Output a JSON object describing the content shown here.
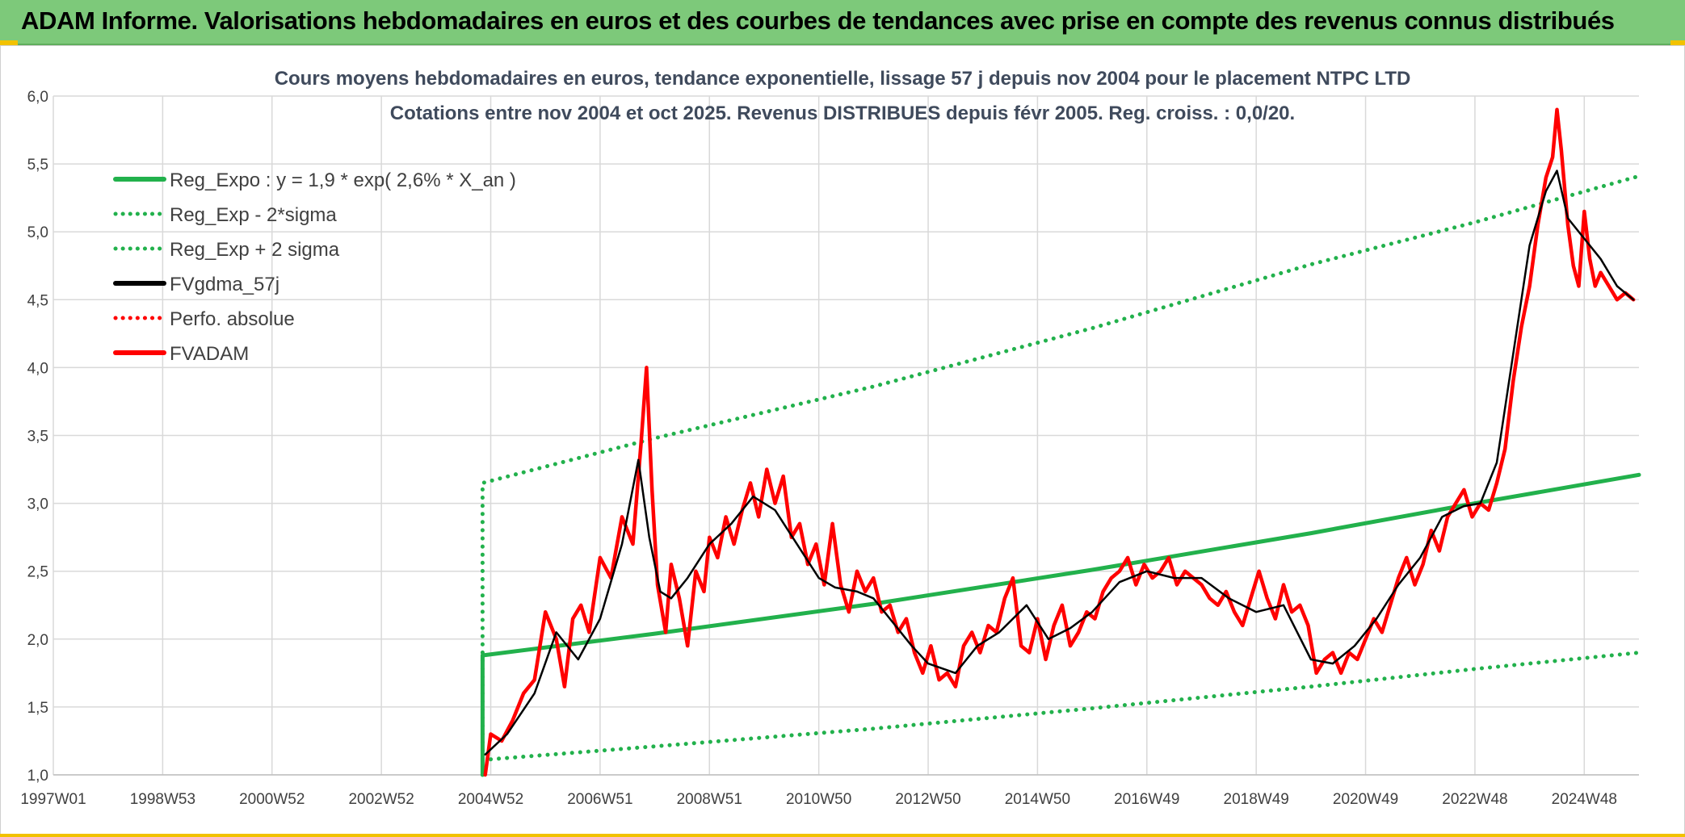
{
  "header": {
    "title": "ADAM Informe. Valorisations hebdomadaires en euros et des courbes de tendances avec prise en compte des revenus connus distribués"
  },
  "chart_data": {
    "type": "line",
    "title": "Cours moyens hebdomadaires en euros, tendance exponentielle, lissage 57 j depuis nov 2004 pour le placement NTPC LTD",
    "subtitle": "Cotations entre nov 2004 et oct 2025. Revenus DISTRIBUES depuis févr 2005. Reg. croiss. : 0,0/20.",
    "xlabel": "",
    "ylabel": "",
    "ylim": [
      1.0,
      6.0
    ],
    "yticks": [
      "1,0",
      "1,5",
      "2,0",
      "2,5",
      "3,0",
      "3,5",
      "4,0",
      "4,5",
      "5,0",
      "5,5",
      "6,0"
    ],
    "x_tick_labels": [
      "1997W01",
      "1998W53",
      "2000W52",
      "2002W52",
      "2004W52",
      "2006W51",
      "2008W51",
      "2010W50",
      "2012W50",
      "2014W50",
      "2016W49",
      "2018W49",
      "2020W49",
      "2022W48",
      "2024W48"
    ],
    "x_tick_years": [
      1997.0,
      1999.0,
      2001.0,
      2003.0,
      2005.0,
      2007.0,
      2009.0,
      2011.0,
      2013.0,
      2015.0,
      2017.0,
      2019.0,
      2021.0,
      2023.0,
      2025.0
    ],
    "xlim": [
      1997.0,
      2026.0
    ],
    "grid": true,
    "legend_position": "top-left",
    "series": [
      {
        "name": "Reg_Expo : y = 1,9 * exp( 2,6% *  X_an )",
        "color": "#22b14c",
        "style": "solid",
        "x": [
          2004.85,
          2004.85,
          2008,
          2012,
          2016,
          2020,
          2023,
          2026
        ],
        "y": [
          1.0,
          1.88,
          2.04,
          2.26,
          2.51,
          2.78,
          3.0,
          3.21
        ]
      },
      {
        "name": "Reg_Exp - 2*sigma",
        "color": "#22b14c",
        "style": "dotted",
        "x": [
          2004.85,
          2008,
          2012,
          2016,
          2020,
          2023,
          2026
        ],
        "y": [
          1.11,
          1.21,
          1.34,
          1.49,
          1.65,
          1.78,
          1.9
        ]
      },
      {
        "name": "Reg_Exp + 2 sigma",
        "color": "#22b14c",
        "style": "dotted",
        "x": [
          2004.85,
          2004.85,
          2008,
          2012,
          2016,
          2020,
          2023,
          2026
        ],
        "y": [
          1.0,
          3.15,
          3.48,
          3.86,
          4.29,
          4.76,
          5.07,
          5.41
        ]
      },
      {
        "name": "FVgdma_57j",
        "color": "#000000",
        "style": "solid",
        "x": [
          2004.9,
          2005.3,
          2005.8,
          2006.2,
          2006.6,
          2007.0,
          2007.4,
          2007.7,
          2007.9,
          2008.1,
          2008.3,
          2008.6,
          2009.0,
          2009.4,
          2009.8,
          2010.2,
          2010.6,
          2011.0,
          2011.3,
          2011.7,
          2012.0,
          2012.3,
          2012.7,
          2013.0,
          2013.5,
          2013.9,
          2014.3,
          2014.8,
          2015.2,
          2015.6,
          2016.0,
          2016.5,
          2017.0,
          2017.5,
          2018.0,
          2018.5,
          2019.0,
          2019.5,
          2020.0,
          2020.4,
          2020.8,
          2021.2,
          2021.6,
          2022.0,
          2022.4,
          2022.8,
          2023.1,
          2023.4,
          2023.7,
          2024.0,
          2024.3,
          2024.5,
          2024.7,
          2025.0,
          2025.3,
          2025.6,
          2025.9
        ],
        "y": [
          1.15,
          1.3,
          1.6,
          2.05,
          1.85,
          2.15,
          2.7,
          3.32,
          2.75,
          2.35,
          2.3,
          2.45,
          2.7,
          2.85,
          3.05,
          2.95,
          2.7,
          2.45,
          2.38,
          2.35,
          2.3,
          2.15,
          1.95,
          1.82,
          1.75,
          1.95,
          2.05,
          2.25,
          2.0,
          2.08,
          2.2,
          2.42,
          2.5,
          2.45,
          2.45,
          2.3,
          2.2,
          2.25,
          1.85,
          1.82,
          1.95,
          2.15,
          2.4,
          2.6,
          2.9,
          2.98,
          3.0,
          3.3,
          4.1,
          4.9,
          5.3,
          5.45,
          5.1,
          4.95,
          4.8,
          4.6,
          4.5
        ]
      },
      {
        "name": "Perfo. absolue",
        "color": "#ff0000",
        "style": "dotted",
        "x": [],
        "y": []
      },
      {
        "name": "FVADAM",
        "color": "#ff0000",
        "style": "solid",
        "x": [
          2004.9,
          2005.0,
          2005.2,
          2005.4,
          2005.6,
          2005.8,
          2006.0,
          2006.2,
          2006.35,
          2006.5,
          2006.65,
          2006.8,
          2007.0,
          2007.2,
          2007.4,
          2007.6,
          2007.75,
          2007.85,
          2007.95,
          2008.05,
          2008.2,
          2008.3,
          2008.45,
          2008.6,
          2008.75,
          2008.9,
          2009.0,
          2009.15,
          2009.3,
          2009.45,
          2009.6,
          2009.75,
          2009.9,
          2010.05,
          2010.2,
          2010.35,
          2010.5,
          2010.65,
          2010.8,
          2010.95,
          2011.1,
          2011.25,
          2011.4,
          2011.55,
          2011.7,
          2011.85,
          2012.0,
          2012.15,
          2012.3,
          2012.45,
          2012.6,
          2012.75,
          2012.9,
          2013.05,
          2013.2,
          2013.35,
          2013.5,
          2013.65,
          2013.8,
          2013.95,
          2014.1,
          2014.25,
          2014.4,
          2014.55,
          2014.7,
          2014.85,
          2015.0,
          2015.15,
          2015.3,
          2015.45,
          2015.6,
          2015.75,
          2015.9,
          2016.05,
          2016.2,
          2016.35,
          2016.5,
          2016.65,
          2016.8,
          2016.95,
          2017.1,
          2017.25,
          2017.4,
          2017.55,
          2017.7,
          2017.85,
          2018.0,
          2018.15,
          2018.3,
          2018.45,
          2018.6,
          2018.75,
          2018.9,
          2019.05,
          2019.2,
          2019.35,
          2019.5,
          2019.65,
          2019.8,
          2019.95,
          2020.1,
          2020.25,
          2020.4,
          2020.55,
          2020.7,
          2020.85,
          2021.0,
          2021.15,
          2021.3,
          2021.45,
          2021.6,
          2021.75,
          2021.9,
          2022.05,
          2022.2,
          2022.35,
          2022.5,
          2022.65,
          2022.8,
          2022.95,
          2023.1,
          2023.25,
          2023.4,
          2023.55,
          2023.7,
          2023.85,
          2024.0,
          2024.15,
          2024.3,
          2024.42,
          2024.5,
          2024.58,
          2024.7,
          2024.8,
          2024.9,
          2025.0,
          2025.1,
          2025.2,
          2025.3,
          2025.45,
          2025.6,
          2025.75,
          2025.9
        ],
        "y": [
          1.0,
          1.3,
          1.25,
          1.4,
          1.6,
          1.7,
          2.2,
          2.0,
          1.65,
          2.15,
          2.25,
          2.05,
          2.6,
          2.45,
          2.9,
          2.7,
          3.45,
          4.0,
          3.1,
          2.4,
          2.05,
          2.55,
          2.3,
          1.95,
          2.5,
          2.35,
          2.75,
          2.6,
          2.9,
          2.7,
          2.95,
          3.15,
          2.9,
          3.25,
          3.0,
          3.2,
          2.75,
          2.85,
          2.55,
          2.7,
          2.4,
          2.85,
          2.4,
          2.2,
          2.5,
          2.35,
          2.45,
          2.2,
          2.25,
          2.05,
          2.15,
          1.9,
          1.75,
          1.95,
          1.7,
          1.75,
          1.65,
          1.95,
          2.05,
          1.9,
          2.1,
          2.05,
          2.3,
          2.45,
          1.95,
          1.9,
          2.15,
          1.85,
          2.1,
          2.25,
          1.95,
          2.05,
          2.2,
          2.15,
          2.35,
          2.45,
          2.5,
          2.6,
          2.4,
          2.55,
          2.45,
          2.5,
          2.6,
          2.4,
          2.5,
          2.45,
          2.4,
          2.3,
          2.25,
          2.35,
          2.2,
          2.1,
          2.3,
          2.5,
          2.3,
          2.15,
          2.4,
          2.2,
          2.25,
          2.1,
          1.75,
          1.85,
          1.9,
          1.75,
          1.9,
          1.85,
          2.0,
          2.15,
          2.05,
          2.25,
          2.45,
          2.6,
          2.4,
          2.55,
          2.8,
          2.65,
          2.9,
          3.0,
          3.1,
          2.9,
          3.0,
          2.95,
          3.15,
          3.4,
          3.9,
          4.3,
          4.6,
          5.05,
          5.4,
          5.55,
          5.9,
          5.6,
          5.05,
          4.75,
          4.6,
          5.15,
          4.8,
          4.6,
          4.7,
          4.6,
          4.5,
          4.55,
          4.5
        ]
      }
    ]
  }
}
